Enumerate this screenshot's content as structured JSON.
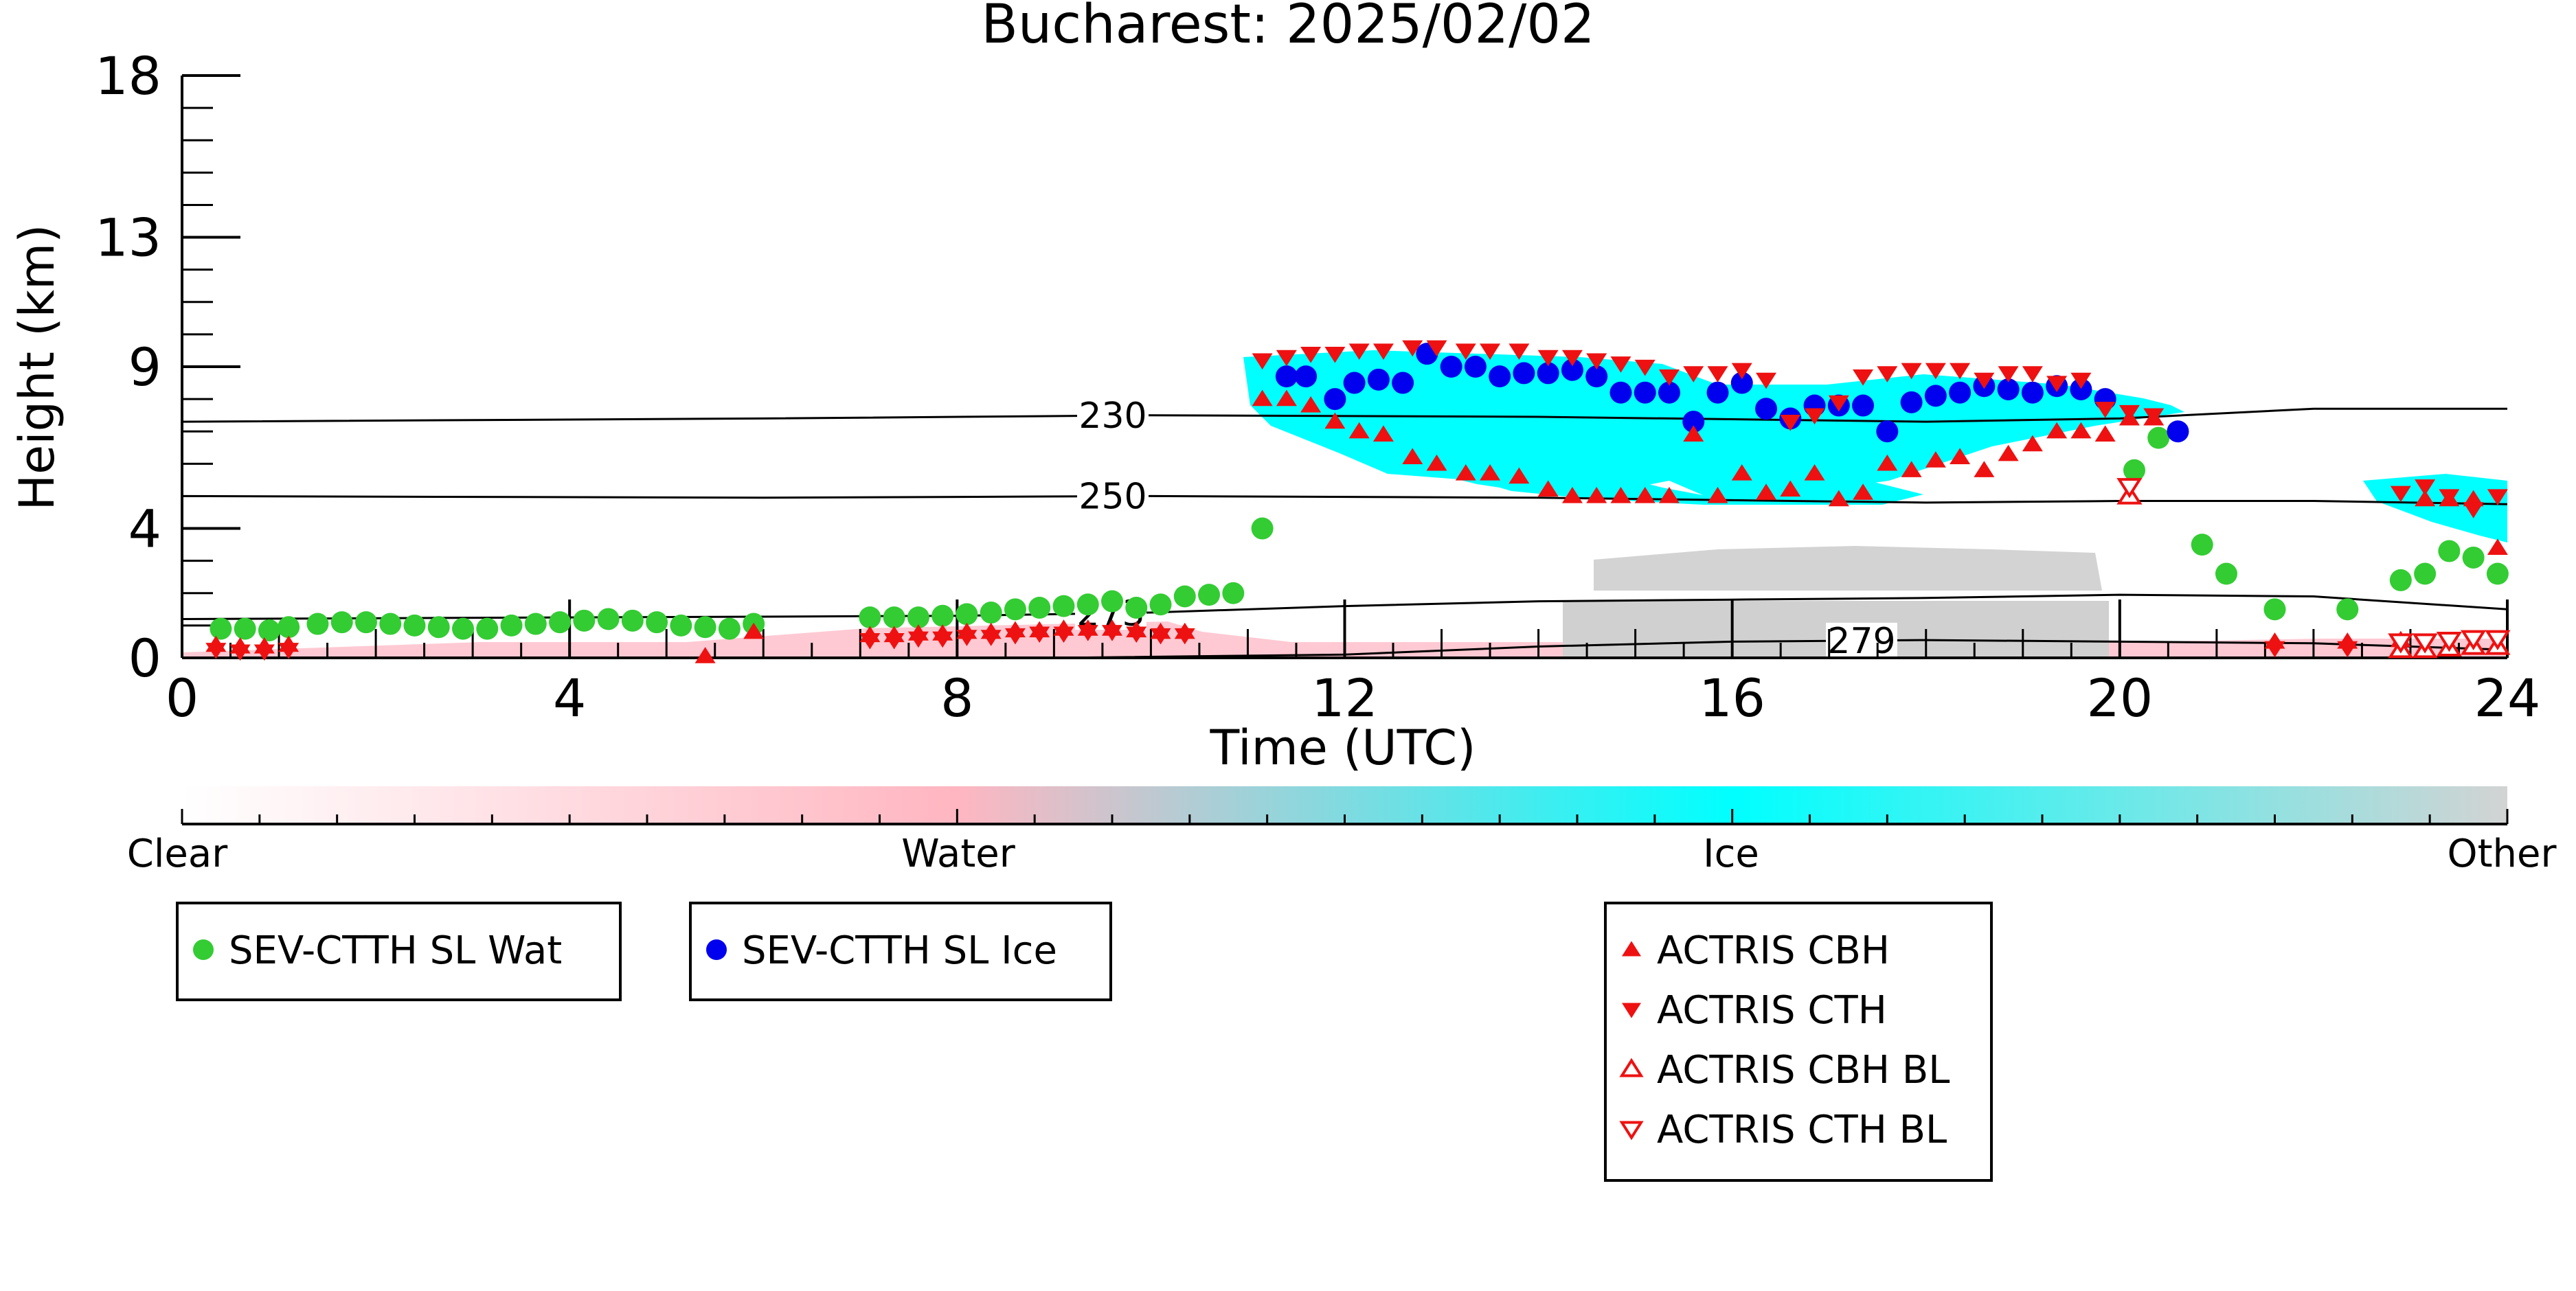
{
  "chart_data": {
    "type": "scatter",
    "title": "Bucharest: 2025/02/02",
    "xlabel": "Time (UTC)",
    "ylabel": "Height (km)",
    "xlim": [
      0,
      24
    ],
    "ylim": [
      0,
      18
    ],
    "xticks": [
      0,
      4,
      8,
      12,
      16,
      20,
      24
    ],
    "yticks": [
      0,
      4,
      9,
      13,
      18
    ],
    "grid": false,
    "colorbar": {
      "labels": [
        "Clear",
        "Water",
        "Ice",
        "Other"
      ],
      "colors": [
        "#ffffff",
        "#ffb6c1",
        "#00ffff",
        "#d3d3d3"
      ]
    },
    "contours": [
      {
        "label": "230",
        "points": [
          [
            0,
            7.3
          ],
          [
            6,
            7.4
          ],
          [
            10,
            7.5
          ],
          [
            14,
            7.45
          ],
          [
            18,
            7.3
          ],
          [
            20,
            7.4
          ],
          [
            22,
            7.7
          ],
          [
            24,
            7.7
          ]
        ]
      },
      {
        "label": "250",
        "points": [
          [
            0,
            5.0
          ],
          [
            6,
            4.95
          ],
          [
            10,
            5.0
          ],
          [
            14,
            4.95
          ],
          [
            18,
            4.8
          ],
          [
            20,
            4.85
          ],
          [
            22,
            4.85
          ],
          [
            24,
            4.75
          ]
        ]
      },
      {
        "label": "273",
        "points": [
          [
            0,
            1.2
          ],
          [
            4,
            1.25
          ],
          [
            8,
            1.3
          ],
          [
            10,
            1.4
          ],
          [
            12,
            1.6
          ],
          [
            14,
            1.75
          ],
          [
            16,
            1.8
          ],
          [
            18,
            1.85
          ],
          [
            20,
            1.95
          ],
          [
            22,
            1.9
          ],
          [
            24,
            1.5
          ]
        ]
      },
      {
        "label": "279",
        "points": [
          [
            9,
            0
          ],
          [
            12,
            0.1
          ],
          [
            14,
            0.35
          ],
          [
            16,
            0.5
          ],
          [
            18,
            0.55
          ],
          [
            20,
            0.5
          ],
          [
            22,
            0.45
          ],
          [
            23,
            0.35
          ],
          [
            24,
            0.25
          ]
        ]
      }
    ],
    "series": [
      {
        "name": "SEV-CTTH SL Wat",
        "color": "#33cc33",
        "marker": "circle",
        "x": [
          0.4,
          0.65,
          0.9,
          1.1,
          1.4,
          1.65,
          1.9,
          2.15,
          2.4,
          2.65,
          2.9,
          3.15,
          3.4,
          3.65,
          3.9,
          4.15,
          4.4,
          4.65,
          4.9,
          5.15,
          5.4,
          5.65,
          5.9,
          7.1,
          7.35,
          7.6,
          7.85,
          8.1,
          8.35,
          8.6,
          8.85,
          9.1,
          9.35,
          9.6,
          9.85,
          10.1,
          10.35,
          10.6,
          10.85,
          11.15,
          20.15,
          20.4,
          20.85,
          21.1,
          21.6,
          22.35,
          22.9,
          23.15,
          23.4,
          23.65,
          23.9
        ],
        "y": [
          0.9,
          0.9,
          0.85,
          0.95,
          1.05,
          1.1,
          1.1,
          1.05,
          1.0,
          0.95,
          0.9,
          0.9,
          1.0,
          1.05,
          1.1,
          1.15,
          1.2,
          1.15,
          1.1,
          1.0,
          0.95,
          0.9,
          1.05,
          1.25,
          1.25,
          1.25,
          1.3,
          1.35,
          1.4,
          1.5,
          1.55,
          1.6,
          1.65,
          1.75,
          1.55,
          1.65,
          1.9,
          1.95,
          2.0,
          4.0,
          5.8,
          6.8,
          3.5,
          2.6,
          1.5,
          1.5,
          2.4,
          2.6,
          3.3,
          3.1,
          2.6
        ]
      },
      {
        "name": "SEV-CTTH SL Ice",
        "color": "#0000ee",
        "marker": "circle",
        "x": [
          11.4,
          11.6,
          11.9,
          12.1,
          12.35,
          12.6,
          12.85,
          13.1,
          13.35,
          13.6,
          13.85,
          14.1,
          14.35,
          14.6,
          14.85,
          15.1,
          15.35,
          15.6,
          15.85,
          16.1,
          16.35,
          16.6,
          16.85,
          17.1,
          17.35,
          17.6,
          17.85,
          18.1,
          18.35,
          18.6,
          18.85,
          19.1,
          19.35,
          19.6,
          19.85,
          20.6
        ],
        "y": [
          8.7,
          8.7,
          8.0,
          8.5,
          8.6,
          8.5,
          9.4,
          9.0,
          9.0,
          8.7,
          8.8,
          8.8,
          8.9,
          8.7,
          8.2,
          8.2,
          8.2,
          7.3,
          8.2,
          8.5,
          7.7,
          7.4,
          7.8,
          7.8,
          7.8,
          7.0,
          7.9,
          8.1,
          8.2,
          8.4,
          8.3,
          8.2,
          8.4,
          8.3,
          8.0,
          7.0
        ]
      },
      {
        "name": "ACTRIS CBH",
        "color": "#ee1111",
        "marker": "triangle-up",
        "x": [
          0.35,
          0.6,
          0.85,
          1.1,
          5.4,
          5.9,
          7.1,
          7.35,
          7.6,
          7.85,
          8.1,
          8.35,
          8.6,
          8.85,
          9.1,
          9.35,
          9.6,
          9.85,
          10.1,
          10.35,
          11.15,
          11.4,
          11.65,
          11.9,
          12.15,
          12.4,
          12.7,
          12.95,
          13.25,
          13.5,
          13.8,
          14.1,
          14.35,
          14.6,
          14.85,
          15.1,
          15.35,
          15.6,
          15.85,
          16.1,
          16.35,
          16.6,
          16.85,
          17.1,
          17.35,
          17.6,
          17.85,
          18.1,
          18.35,
          18.6,
          18.85,
          19.1,
          19.35,
          19.6,
          19.85,
          20.1,
          20.35,
          21.6,
          22.35,
          22.9,
          23.15,
          23.4,
          23.65,
          23.9
        ],
        "y": [
          0.4,
          0.35,
          0.35,
          0.4,
          0.05,
          0.8,
          0.7,
          0.7,
          0.75,
          0.75,
          0.8,
          0.8,
          0.85,
          0.85,
          0.9,
          0.9,
          0.9,
          0.85,
          0.8,
          0.8,
          8.0,
          8.0,
          7.8,
          7.3,
          7.0,
          6.9,
          6.2,
          6.0,
          5.7,
          5.7,
          5.6,
          5.2,
          5.0,
          5.0,
          5.0,
          5.0,
          5.0,
          6.9,
          5.0,
          5.7,
          5.1,
          5.2,
          5.7,
          4.9,
          5.1,
          6.0,
          5.8,
          6.1,
          6.2,
          5.8,
          6.3,
          6.6,
          7.0,
          7.0,
          6.9,
          7.4,
          7.4,
          0.5,
          0.5,
          0.55,
          4.9,
          4.9,
          4.9,
          3.4
        ],
        "hollow": false
      },
      {
        "name": "ACTRIS CTH",
        "color": "#ee1111",
        "marker": "triangle-down",
        "x": [
          0.35,
          0.6,
          0.85,
          1.1,
          7.1,
          7.35,
          7.6,
          7.85,
          8.1,
          8.35,
          8.6,
          8.85,
          9.1,
          9.35,
          9.6,
          9.85,
          10.1,
          10.35,
          11.15,
          11.4,
          11.65,
          11.9,
          12.15,
          12.4,
          12.7,
          12.95,
          13.25,
          13.5,
          13.8,
          14.1,
          14.35,
          14.6,
          14.85,
          15.1,
          15.35,
          15.6,
          15.85,
          16.1,
          16.35,
          16.6,
          16.85,
          17.1,
          17.35,
          17.6,
          17.85,
          18.1,
          18.35,
          18.6,
          18.85,
          19.1,
          19.35,
          19.6,
          19.85,
          20.1,
          20.35,
          21.6,
          22.35,
          22.9,
          23.15,
          23.4,
          23.65,
          23.9
        ],
        "y": [
          0.25,
          0.2,
          0.2,
          0.25,
          0.55,
          0.55,
          0.6,
          0.6,
          0.65,
          0.65,
          0.7,
          0.75,
          0.75,
          0.8,
          0.8,
          0.75,
          0.7,
          0.7,
          9.2,
          9.3,
          9.4,
          9.4,
          9.5,
          9.5,
          9.6,
          9.6,
          9.5,
          9.5,
          9.5,
          9.3,
          9.3,
          9.2,
          9.1,
          9.0,
          8.7,
          8.8,
          8.8,
          8.9,
          8.6,
          7.3,
          7.5,
          7.9,
          8.7,
          8.8,
          8.9,
          8.9,
          8.9,
          8.6,
          8.8,
          8.8,
          8.5,
          8.6,
          7.7,
          7.6,
          7.5,
          0.3,
          0.3,
          5.1,
          5.3,
          5.0,
          4.6,
          5.0
        ],
        "hollow": false
      },
      {
        "name": "ACTRIS CBH BL",
        "color": "#ee1111",
        "marker": "triangle-up-open",
        "x": [
          20.1,
          22.9,
          23.15,
          23.4,
          23.65,
          23.9
        ],
        "y": [
          5.0,
          0.25,
          0.25,
          0.3,
          0.35,
          0.35
        ],
        "hollow": true
      },
      {
        "name": "ACTRIS CTH BL",
        "color": "#ee1111",
        "marker": "triangle-down-open",
        "x": [
          20.1,
          22.9,
          23.15,
          23.4,
          23.65,
          23.9
        ],
        "y": [
          5.3,
          0.5,
          0.5,
          0.55,
          0.6,
          0.6
        ],
        "hollow": true
      }
    ],
    "legends": [
      {
        "entries": [
          "SEV-CTTH SL Wat"
        ]
      },
      {
        "entries": [
          "SEV-CTTH SL Ice"
        ]
      },
      {
        "entries": [
          "ACTRIS CBH",
          "ACTRIS CTH",
          "ACTRIS CBH BL",
          "ACTRIS CTH BL"
        ]
      }
    ]
  }
}
